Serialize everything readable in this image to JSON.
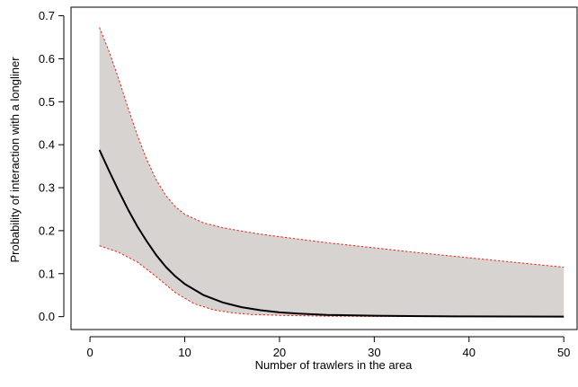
{
  "chart_data": {
    "type": "line",
    "title": "",
    "xlabel": "Number of trawlers in the area",
    "ylabel": "Probability of interaction with a longliner",
    "xlim": [
      -2,
      51.5
    ],
    "ylim": [
      -0.03,
      0.72
    ],
    "xticks": [
      0,
      10,
      20,
      30,
      40,
      50
    ],
    "yticks": [
      0.0,
      0.1,
      0.2,
      0.3,
      0.4,
      0.5,
      0.6,
      0.7
    ],
    "xtick_labels": [
      "0",
      "10",
      "20",
      "30",
      "40",
      "50"
    ],
    "ytick_labels": [
      "0.0",
      "0.1",
      "0.2",
      "0.3",
      "0.4",
      "0.5",
      "0.6",
      "0.7"
    ],
    "grid": false,
    "legend": "none",
    "colors": {
      "band_fill": "#d6d3d1",
      "bound_line": "#e8271b",
      "fit_line": "#000000",
      "axis": "#000000"
    },
    "series": [
      {
        "role": "fitted",
        "x": [
          1,
          2,
          3,
          4,
          5,
          6,
          7,
          8,
          9,
          10,
          12,
          14,
          16,
          18,
          20,
          22,
          25,
          30,
          35,
          40,
          45,
          50
        ],
        "y": [
          0.388,
          0.34,
          0.294,
          0.25,
          0.21,
          0.175,
          0.143,
          0.116,
          0.094,
          0.076,
          0.05,
          0.033,
          0.022,
          0.015,
          0.01,
          0.007,
          0.004,
          0.002,
          0.001,
          0.0005,
          0.0002,
          0.0001
        ]
      },
      {
        "role": "upper-bound",
        "x": [
          1,
          2,
          3,
          4,
          5,
          6,
          7,
          8,
          9,
          10,
          12,
          14,
          16,
          18,
          20,
          25,
          30,
          35,
          40,
          45,
          50
        ],
        "y": [
          0.673,
          0.618,
          0.555,
          0.487,
          0.422,
          0.365,
          0.318,
          0.282,
          0.256,
          0.238,
          0.218,
          0.207,
          0.199,
          0.192,
          0.186,
          0.172,
          0.16,
          0.148,
          0.137,
          0.126,
          0.115
        ]
      },
      {
        "role": "lower-bound",
        "x": [
          1,
          3,
          5,
          7,
          9,
          11,
          13,
          15,
          17,
          20,
          25,
          30,
          40,
          50
        ],
        "y": [
          0.165,
          0.15,
          0.127,
          0.093,
          0.056,
          0.03,
          0.016,
          0.009,
          0.005,
          0.003,
          0.001,
          0.0005,
          0.0002,
          0.0001
        ]
      }
    ]
  }
}
